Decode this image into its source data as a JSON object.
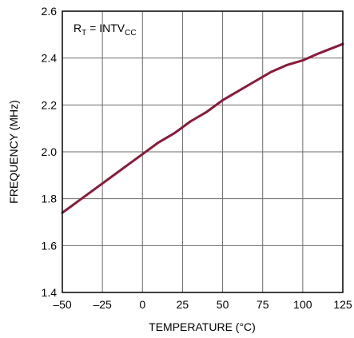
{
  "chart_data": {
    "type": "line",
    "xlabel": "TEMPERATURE (°C)",
    "ylabel": "FREQUENCY (MHz)",
    "xlim": [
      -50,
      125
    ],
    "ylim": [
      1.4,
      2.6
    ],
    "x_ticks": [
      -50,
      -25,
      0,
      25,
      50,
      75,
      100,
      125
    ],
    "x_tick_labels": [
      "–50",
      "–25",
      "0",
      "25",
      "50",
      "75",
      "100",
      "125"
    ],
    "y_ticks": [
      1.4,
      1.6,
      1.8,
      2.0,
      2.2,
      2.4,
      2.6
    ],
    "y_tick_labels": [
      "1.4",
      "1.6",
      "1.8",
      "2.0",
      "2.2",
      "2.4",
      "2.6"
    ],
    "grid": true,
    "annotation": {
      "r": "R",
      "r_sub": "T",
      "eq": " = INTV",
      "cc_sub": "CC"
    },
    "series": [
      {
        "color": "#8b1a3a",
        "x": [
          -50,
          -40,
          -30,
          -20,
          -10,
          0,
          10,
          20,
          30,
          40,
          50,
          60,
          70,
          80,
          90,
          100,
          110,
          125
        ],
        "y": [
          1.74,
          1.79,
          1.84,
          1.89,
          1.94,
          1.99,
          2.04,
          2.08,
          2.13,
          2.17,
          2.22,
          2.26,
          2.3,
          2.34,
          2.37,
          2.39,
          2.42,
          2.46
        ]
      }
    ]
  }
}
